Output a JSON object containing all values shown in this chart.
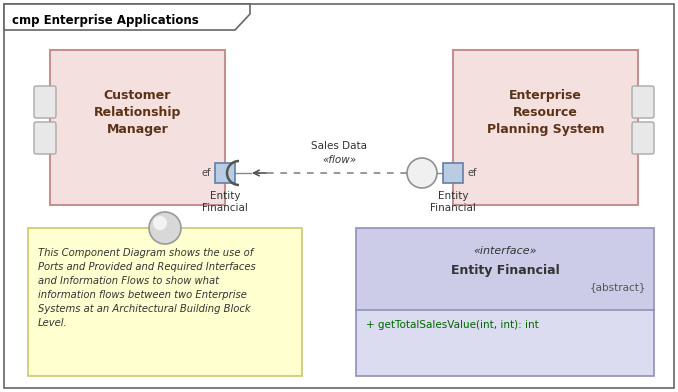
{
  "title": "cmp Enterprise Applications",
  "bg_color": "#ffffff",
  "crm_label": "Customer\nRelationship\nManager",
  "erp_label": "Enterprise\nResource\nPlanning System",
  "note_label": "This Component Diagram shows the use of\nPorts and Provided and Required Interfaces\nand Information Flows to show what\ninformation flows between two Enterprise\nSystems at an Architectural Building Block\nLevel.",
  "interface_title_line1": "«interface»",
  "interface_title_line2": "Entity Financial",
  "interface_abstract": "{abstract}",
  "interface_method": "+ getTotalSalesValue(int, int): int",
  "flow_line1": "Sales Data",
  "flow_line2": "«flow»",
  "port_label": "Entity\nFinancial",
  "ef_label": "ef",
  "crm_color": "#f5e0e0",
  "crm_border": "#c49090",
  "erp_color": "#f5e0e0",
  "erp_border": "#c49090",
  "note_color": "#ffffd0",
  "note_border": "#c8c870",
  "iface_color": "#dcdcf0",
  "iface_border": "#9090b8",
  "iface_header_color": "#cccce8",
  "port_color": "#b8cce4",
  "port_border": "#6080a8",
  "side_port_color": "#e8e8e8",
  "side_port_border": "#aaaaaa",
  "circle_color": "#d8d8d8",
  "circle_border": "#909090",
  "note_circle_color": "#d0d0d0",
  "note_circle_border": "#909090",
  "arrow_color": "#555555",
  "text_color": "#333333",
  "method_color": "#006600"
}
